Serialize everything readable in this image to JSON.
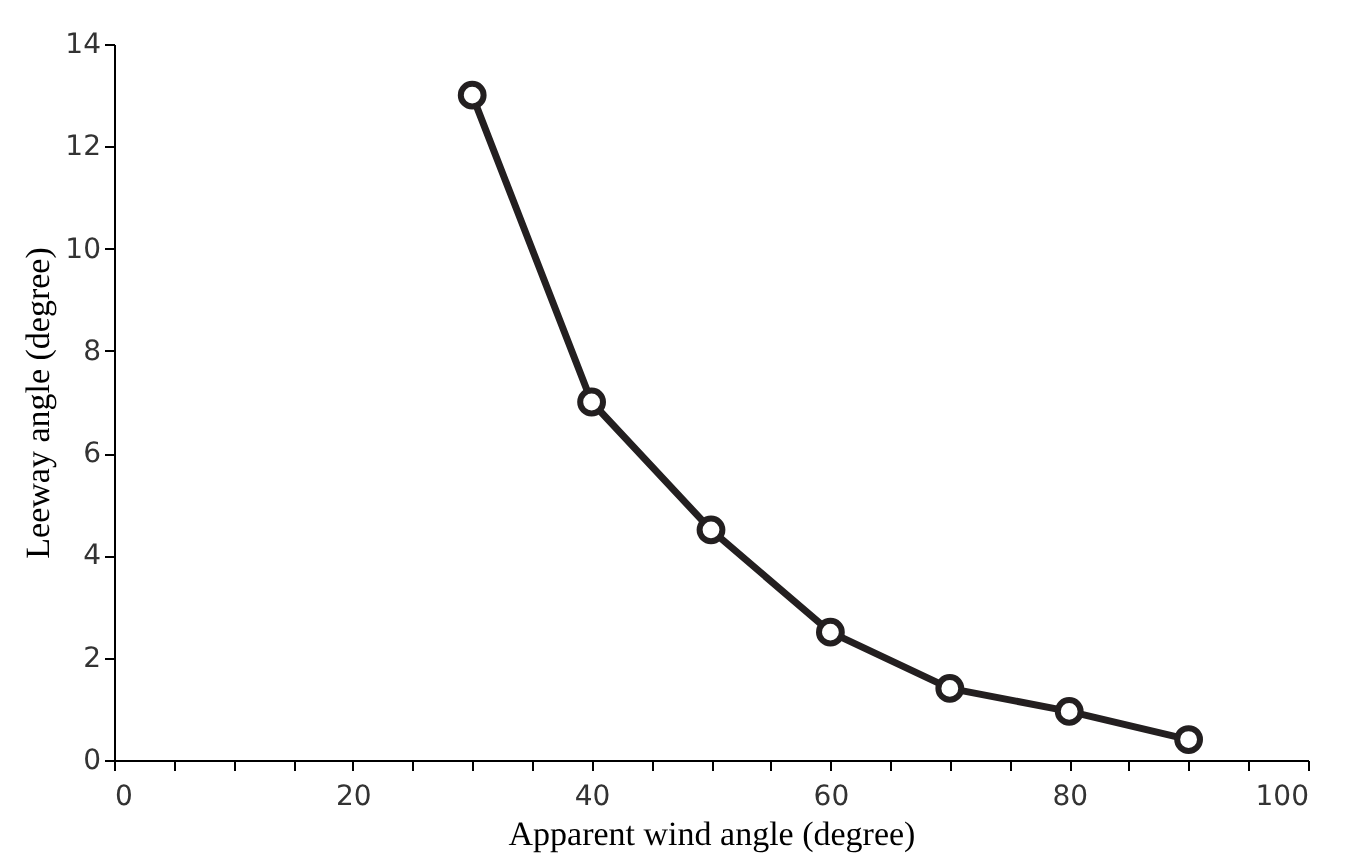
{
  "chart_data": {
    "type": "line",
    "xlabel": "Apparent wind angle (degree)",
    "ylabel": "Leeway angle (degree)",
    "x": [
      30,
      40,
      50,
      60,
      70,
      80,
      90
    ],
    "series": [
      {
        "color": "#231f20",
        "values": [
          13,
          7,
          4.5,
          2.5,
          1.4,
          0.95,
          0.4
        ]
      }
    ],
    "xlim": [
      0,
      100
    ],
    "ylim": [
      0,
      14
    ],
    "xticks": [
      0,
      {
        "value": 5,
        "label": null
      },
      {
        "value": 10,
        "label": null
      },
      {
        "value": 15,
        "label": null
      },
      20,
      {
        "value": 25,
        "label": null
      },
      {
        "value": 30,
        "label": null
      },
      {
        "value": 35,
        "label": null
      },
      40,
      {
        "value": 45,
        "label": null
      },
      {
        "value": 50,
        "label": null
      },
      {
        "value": 55,
        "label": null
      },
      60,
      {
        "value": 65,
        "label": null
      },
      {
        "value": 70,
        "label": null
      },
      {
        "value": 75,
        "label": null
      },
      80,
      {
        "value": 85,
        "label": null
      },
      {
        "value": 90,
        "label": null
      },
      {
        "value": 95,
        "label": null
      },
      100
    ],
    "yticks": [
      0,
      2,
      4,
      6,
      8,
      10,
      12,
      14
    ],
    "grid": false,
    "legend": false,
    "marker": "circle",
    "line_style": "solid"
  }
}
